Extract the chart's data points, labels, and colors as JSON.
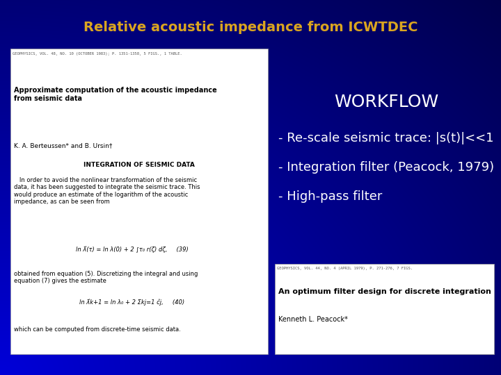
{
  "title": "Relative acoustic impedance from ICWTDEC",
  "title_color": "#DAA520",
  "title_fontsize": 14,
  "bg_color": "#0000CC",
  "workflow_title": "WORKFLOW",
  "workflow_items": [
    "- Re-scale seismic trace: |s(t)|<<1",
    "- Integration filter (Peacock, 1979)",
    "- High-pass filter"
  ],
  "paper1_header": "GEOPHYSICS, VOL. 48, NO. 10 (OCTOBER 1983); P. 1351-1358, 5 FIGS., 1 TABLE.",
  "paper1_title": "Approximate computation of the acoustic impedance\nfrom seismic data",
  "paper1_author": "K. A. Berteussen* and B. Ursin†",
  "paper1_section": "INTEGRATION OF SEISMIC DATA",
  "paper1_body": "   In order to avoid the nonlinear transformation of the seismic\ndata, it has been suggested to integrate the seismic trace. This\nwould produce an estimate of the logarithm of the acoustic\nimpedance, as can be seen from",
  "paper1_eq1": "ln λ̂(τ) = ln λ(0) + 2 ∫τ₀ r(ζ) dζ,     (39)",
  "paper1_body2": "obtained from equation (5). Discretizing the integral and using\nequation (7) gives the estimate",
  "paper1_eq2": "ln λ̂k+1 = ln λ₀ + 2 Σkj=1 ĉj,     (40)",
  "paper1_body3": "which can be computed from discrete-time seismic data.",
  "paper2_header": "GEOPHYSICS, VOL. 44, NO. 4 (APRIL 1979), P. 271-276, 7 FIGS.",
  "paper2_title": "An optimum filter design for discrete integration",
  "paper2_author": "Kenneth L. Peacock*",
  "paper_bg": "#FFFFFF",
  "paper_text_color": "#000000",
  "workflow_text_color": "#FFFFFF"
}
